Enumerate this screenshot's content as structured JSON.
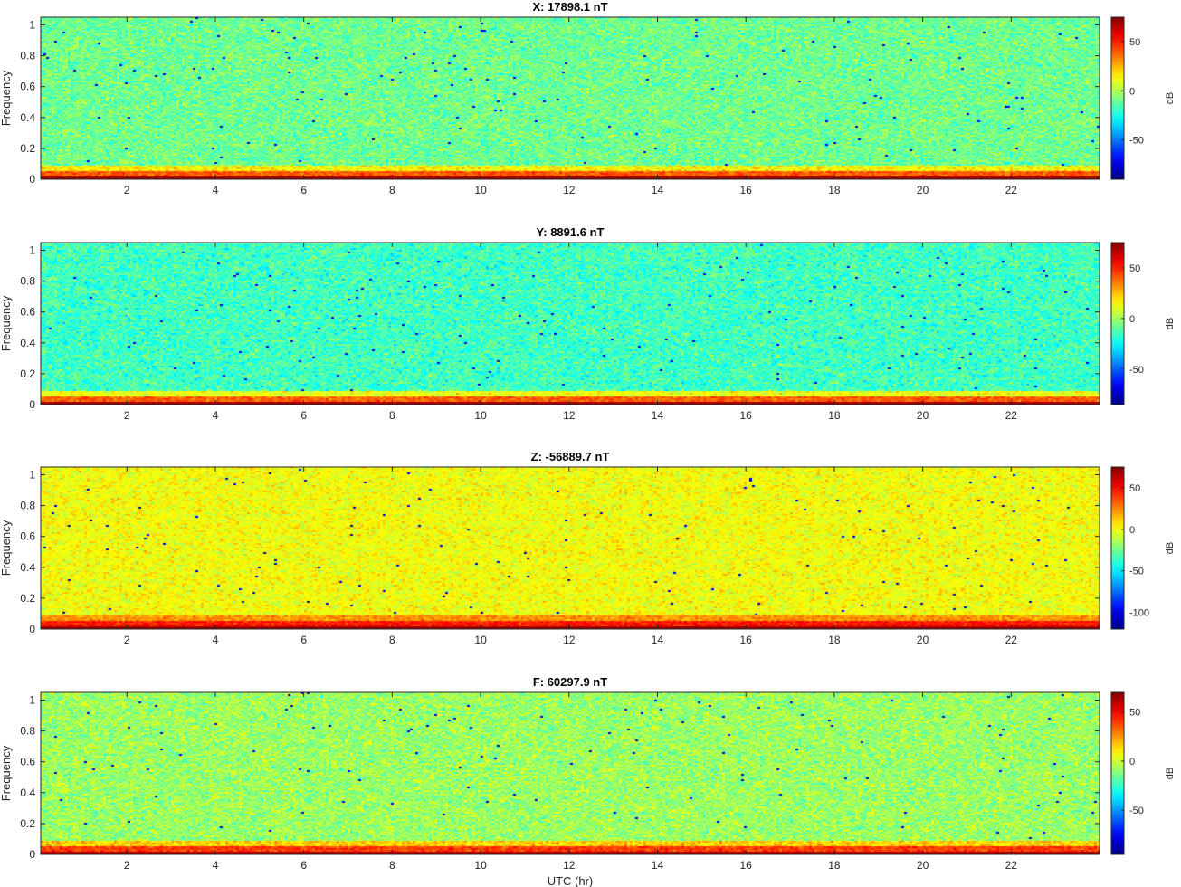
{
  "figure": {
    "xlabel": "UTC (hr)"
  },
  "colormap": "jet",
  "chart_data": [
    {
      "type": "heatmap",
      "title": "X: 17898.1 nT",
      "xlabel": "",
      "ylabel": "Frequency",
      "x_ticks": [
        2,
        4,
        6,
        8,
        10,
        12,
        14,
        16,
        18,
        20,
        22
      ],
      "y_ticks": [
        0,
        0.2,
        0.4,
        0.6,
        0.8,
        1
      ],
      "xlim": [
        0.05,
        24
      ],
      "ylim": [
        0,
        1.05
      ],
      "colorbar": {
        "label": "dB",
        "ticks": [
          50,
          0,
          -50
        ],
        "range": [
          -90,
          75
        ]
      },
      "background_db": -10,
      "low_freq_band_db": 40,
      "bottom_row_db": 70
    },
    {
      "type": "heatmap",
      "title": "Y: 8891.6 nT",
      "xlabel": "",
      "ylabel": "Frequency",
      "x_ticks": [
        2,
        4,
        6,
        8,
        10,
        12,
        14,
        16,
        18,
        20,
        22
      ],
      "y_ticks": [
        0,
        0.2,
        0.4,
        0.6,
        0.8,
        1
      ],
      "xlim": [
        0.05,
        24
      ],
      "ylim": [
        0,
        1.05
      ],
      "colorbar": {
        "label": "dB",
        "ticks": [
          50,
          0,
          -50
        ],
        "range": [
          -85,
          75
        ]
      },
      "background_db": -15,
      "low_freq_band_db": 40,
      "bottom_row_db": 70
    },
    {
      "type": "heatmap",
      "title": "Z: -56889.7 nT",
      "xlabel": "",
      "ylabel": "Frequency",
      "x_ticks": [
        2,
        4,
        6,
        8,
        10,
        12,
        14,
        16,
        18,
        20,
        22
      ],
      "y_ticks": [
        0,
        0.2,
        0.4,
        0.6,
        0.8,
        1
      ],
      "xlim": [
        0.05,
        24
      ],
      "ylim": [
        0,
        1.05
      ],
      "colorbar": {
        "label": "dB",
        "ticks": [
          50,
          0,
          -50,
          -100
        ],
        "range": [
          -120,
          75
        ]
      },
      "background_db": 0,
      "low_freq_band_db": 45,
      "bottom_row_db": 70
    },
    {
      "type": "heatmap",
      "title": "F: 60297.9 nT",
      "xlabel": "UTC (hr)",
      "ylabel": "Frequency",
      "x_ticks": [
        2,
        4,
        6,
        8,
        10,
        12,
        14,
        16,
        18,
        20,
        22
      ],
      "y_ticks": [
        0,
        0.2,
        0.4,
        0.6,
        0.8,
        1
      ],
      "xlim": [
        0.05,
        24
      ],
      "ylim": [
        0,
        1.05
      ],
      "colorbar": {
        "label": "dB",
        "ticks": [
          50,
          0,
          -50
        ],
        "range": [
          -95,
          70
        ]
      },
      "background_db": -8,
      "low_freq_band_db": 40,
      "bottom_row_db": 65
    }
  ]
}
